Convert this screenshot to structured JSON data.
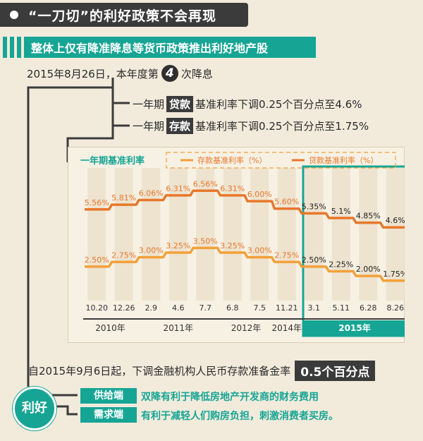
{
  "header": {
    "title": "“一刀切”的利好政策不会再现",
    "subtitle": "整体上仅有降准降息等货币政策推出利好地产股"
  },
  "announcement": {
    "prefix": "2015年8月26日，本年度第",
    "number": "4",
    "suffix": "次降息"
  },
  "rate_changes": [
    {
      "prefix": "一年期",
      "tag": "贷款",
      "text": "基准利率下调0.25个百分点至4.6%"
    },
    {
      "prefix": "一年期",
      "tag": "存款",
      "text": "基准利率下调0.25个百分点至1.75%"
    }
  ],
  "rrr": {
    "text": "自2015年9月6日起，下调金融机构人民币存款准备金率",
    "value": "0.5个百分点"
  },
  "benefits": {
    "label": "利好",
    "items": [
      {
        "tag": "供给端",
        "text": "双降有利于降低房地产开发商的财务费用"
      },
      {
        "tag": "需求端",
        "text": "有利于减轻人们购房负担，刺激消费者买房。"
      }
    ]
  },
  "colors": {
    "teal": "#16a594",
    "dark": "#3b3b3b",
    "deposit_line": "#f4a03a",
    "loan_line": "#e8772a",
    "label_color": "#e8772a"
  },
  "chart_data": {
    "type": "line",
    "title": "一年期基准利率",
    "categories": [
      "10.20",
      "12.26",
      "2.9",
      "4.6",
      "7.7",
      "6.8",
      "7.5",
      "11.21",
      "3.1",
      "5.11",
      "6.28",
      "8.26"
    ],
    "year_groups": [
      {
        "label": "2010年",
        "start": 0,
        "end": 1
      },
      {
        "label": "2011年",
        "start": 2,
        "end": 4
      },
      {
        "label": "2012年",
        "start": 5,
        "end": 6
      },
      {
        "label": "2014年",
        "start": 7,
        "end": 7
      },
      {
        "label": "2015年",
        "start": 8,
        "end": 11
      }
    ],
    "series": [
      {
        "name": "存款基准利率（%）",
        "values": [
          2.5,
          2.75,
          3.0,
          3.25,
          3.5,
          3.25,
          3.0,
          2.75,
          2.5,
          2.25,
          2.0,
          1.75
        ],
        "labels": [
          "2.50%",
          "2.75%",
          "3.00%",
          "3.25%",
          "3.50%",
          "3.25%",
          "3.00%",
          "2.75%",
          "2.50%",
          "2.25%",
          "2.00%",
          "1.75%"
        ]
      },
      {
        "name": "贷款基准利率（%）",
        "values": [
          5.56,
          5.81,
          6.06,
          6.31,
          6.56,
          6.31,
          6.0,
          5.6,
          5.35,
          5.1,
          4.85,
          4.6
        ],
        "labels": [
          "5.56%",
          "5.81%",
          "6.06%",
          "6.31%",
          "6.56%",
          "6.31%",
          "6.00%",
          "5.60%",
          "5.35%",
          "5.1%",
          "4.85%",
          "4.6%"
        ]
      }
    ],
    "highlight_year": "2015年"
  }
}
